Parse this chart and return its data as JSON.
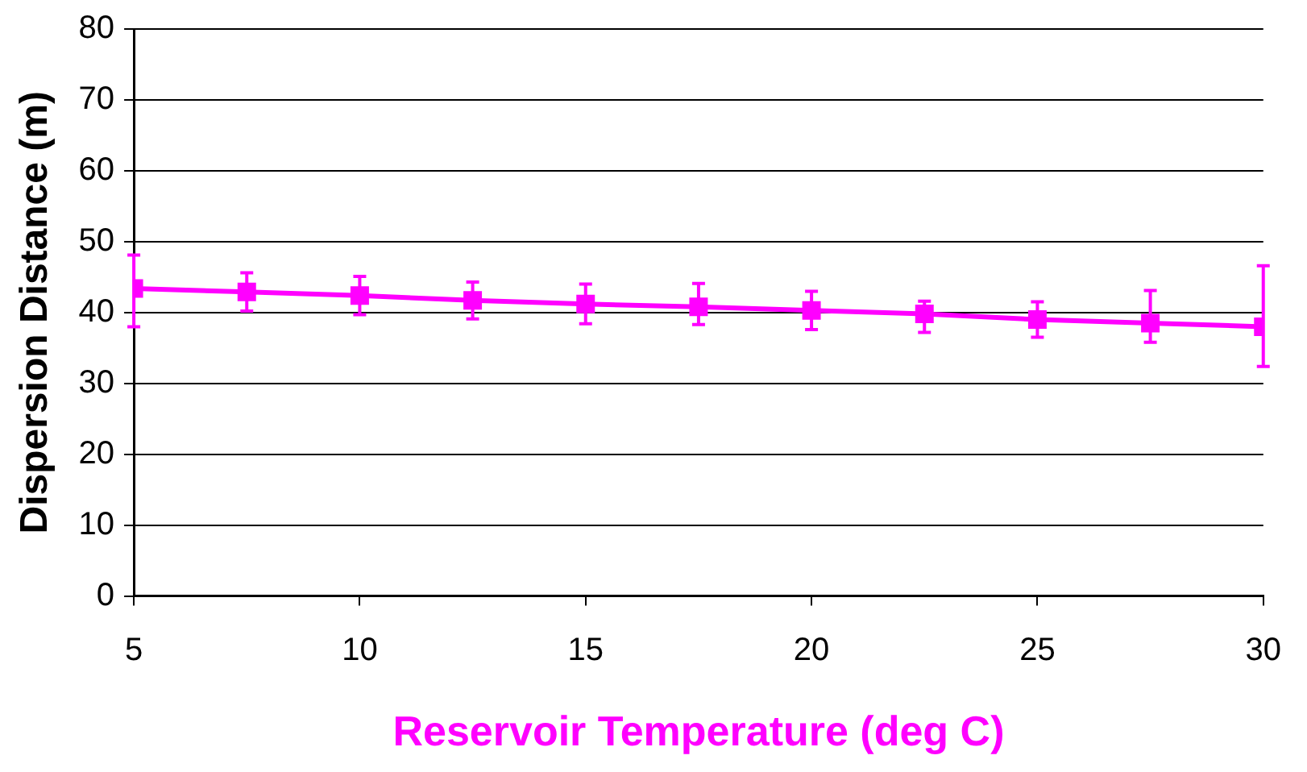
{
  "chart_data": {
    "type": "line",
    "xlabel": "Reservoir Temperature (deg C)",
    "ylabel": "Dispersion Distance (m)",
    "x": [
      5,
      7.5,
      10,
      12.5,
      15,
      17.5,
      20,
      22.5,
      25,
      27.5,
      30
    ],
    "series": [
      {
        "color": "#ff00ff",
        "values": [
          43.4,
          42.9,
          42.4,
          41.7,
          41.2,
          40.8,
          40.3,
          39.8,
          39.0,
          38.5,
          38.0
        ],
        "errors": [
          [
            38.0,
            48.1
          ],
          2.7,
          2.7,
          2.6,
          2.8,
          [
            38.3,
            44.1
          ],
          2.7,
          [
            37.2,
            41.6
          ],
          2.5,
          [
            35.8,
            43.1
          ],
          [
            32.4,
            46.6
          ]
        ]
      }
    ],
    "xlim": [
      5,
      30
    ],
    "xticks": [
      5,
      10,
      15,
      20,
      25,
      30
    ],
    "ylim": [
      0,
      80
    ],
    "yticks": [
      0,
      10,
      20,
      30,
      40,
      50,
      60,
      70,
      80
    ],
    "grid": "y",
    "legend": false,
    "marker": "square",
    "line_style": "solid"
  }
}
